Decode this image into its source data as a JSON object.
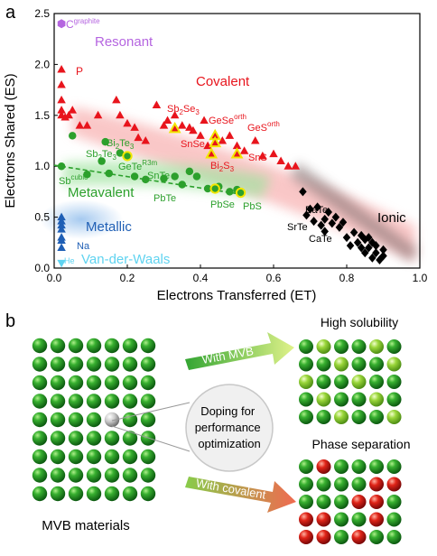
{
  "panel_a": {
    "panel_label": "a",
    "xlabel": "Electrons Transferred (ET)",
    "ylabel": "Electrons Shared (ES)",
    "xticks": [
      "0.0",
      "0.2",
      "0.4",
      "0.6",
      "0.8",
      "1.0"
    ],
    "yticks": [
      "0.0",
      "0.5",
      "1.0",
      "1.5",
      "2.0",
      "2.5"
    ],
    "regions": {
      "resonant": "Resonant",
      "covalent": "Covalent",
      "metavalent": "Metavalent",
      "metallic": "Metallic",
      "ionic": "Ionic",
      "vdw": "Van-der-Waals"
    },
    "point_labels": {
      "c": "C",
      "c_sup": "graphite",
      "p": "P",
      "sb2se3_a": "Sb",
      "sb2se3_b": "2",
      "sb2se3_c": "Se",
      "sb2se3_d": "3",
      "gese_a": "GeSe",
      "gese_b": "orth",
      "ges_a": "GeS",
      "ges_b": "orth",
      "snse": "SnSe",
      "bi2s3_a": "Bi",
      "bi2s3_b": "2",
      "bi2s3_c": "S",
      "bi2s3_d": "3",
      "sns": "SnS",
      "bi2te3_a": "Bi",
      "bi2te3_b": "2",
      "bi2te3_c": "Te",
      "bi2te3_d": "3",
      "sb2te3_a": "Sb",
      "sb2te3_b": "2",
      "sb2te3_c": "Te",
      "sb2te3_d": "3",
      "gete_a": "GeTe",
      "gete_b": "R3m",
      "snte": "SnTe",
      "sb_a": "Sb",
      "sb_b": "cubic",
      "pbte": "PbTe",
      "pbse": "PbSe",
      "pbs": "PbS",
      "bate": "BaTe",
      "srte": "SrTe",
      "cate": "CaTe",
      "na": "Na",
      "he": "He"
    },
    "colors": {
      "covalent": "#e8141c",
      "metavalent": "#2ca02c",
      "ionic": "#000000",
      "metallic": "#1f5fb5",
      "resonant": "#b565e0",
      "vdw": "#5fd3f0",
      "highlight": "#f2e600"
    },
    "chart_data": {
      "type": "scatter",
      "xlim": [
        0.0,
        1.0
      ],
      "ylim": [
        0.0,
        2.5
      ],
      "series": [
        {
          "name": "Covalent",
          "marker": "triangle-up",
          "color": "#e8141c",
          "points": [
            [
              0.02,
              1.95
            ],
            [
              0.02,
              1.8
            ],
            [
              0.02,
              1.65
            ],
            [
              0.02,
              1.55
            ],
            [
              0.02,
              1.5
            ],
            [
              0.03,
              1.48
            ],
            [
              0.04,
              1.5
            ],
            [
              0.05,
              1.55
            ],
            [
              0.07,
              1.4
            ],
            [
              0.09,
              1.4
            ],
            [
              0.12,
              1.5
            ],
            [
              0.17,
              1.65
            ],
            [
              0.18,
              1.5
            ],
            [
              0.2,
              1.42
            ],
            [
              0.22,
              1.38
            ],
            [
              0.23,
              1.28
            ],
            [
              0.25,
              1.25
            ],
            [
              0.28,
              1.6
            ],
            [
              0.3,
              1.4
            ],
            [
              0.31,
              1.45
            ],
            [
              0.33,
              1.5
            ],
            [
              0.35,
              1.4
            ],
            [
              0.37,
              1.38
            ],
            [
              0.38,
              1.35
            ],
            [
              0.4,
              1.3
            ],
            [
              0.41,
              1.45
            ],
            [
              0.42,
              1.2
            ],
            [
              0.46,
              1.25
            ],
            [
              0.48,
              1.3
            ],
            [
              0.5,
              1.2
            ],
            [
              0.52,
              1.15
            ],
            [
              0.55,
              1.25
            ],
            [
              0.57,
              1.1
            ],
            [
              0.6,
              1.12
            ],
            [
              0.62,
              1.05
            ],
            [
              0.64,
              1.0
            ],
            [
              0.66,
              1.0
            ]
          ],
          "highlighted": [
            [
              0.33,
              1.37
            ],
            [
              0.44,
              1.3
            ],
            [
              0.44,
              1.23
            ],
            [
              0.43,
              1.12
            ],
            [
              0.5,
              1.12
            ]
          ]
        },
        {
          "name": "Metavalent",
          "marker": "circle",
          "color": "#2ca02c",
          "points": [
            [
              0.02,
              1.0
            ],
            [
              0.05,
              1.3
            ],
            [
              0.09,
              0.92
            ],
            [
              0.13,
              1.05
            ],
            [
              0.14,
              1.24
            ],
            [
              0.15,
              0.93
            ],
            [
              0.18,
              1.13
            ],
            [
              0.22,
              0.9
            ],
            [
              0.25,
              0.87
            ],
            [
              0.3,
              0.88
            ],
            [
              0.33,
              0.9
            ],
            [
              0.35,
              0.82
            ],
            [
              0.37,
              0.95
            ],
            [
              0.39,
              0.9
            ],
            [
              0.42,
              0.78
            ],
            [
              0.45,
              0.8
            ],
            [
              0.48,
              0.75
            ],
            [
              0.5,
              0.77
            ]
          ],
          "highlighted": [
            [
              0.2,
              1.1
            ],
            [
              0.44,
              0.78
            ],
            [
              0.51,
              0.74
            ]
          ]
        },
        {
          "name": "Ionic",
          "marker": "diamond",
          "color": "#000000",
          "points": [
            [
              0.68,
              0.75
            ],
            [
              0.69,
              0.52
            ],
            [
              0.7,
              0.58
            ],
            [
              0.71,
              0.46
            ],
            [
              0.72,
              0.6
            ],
            [
              0.73,
              0.42
            ],
            [
              0.74,
              0.48
            ],
            [
              0.74,
              0.36
            ],
            [
              0.75,
              0.55
            ],
            [
              0.76,
              0.44
            ],
            [
              0.77,
              0.5
            ],
            [
              0.78,
              0.4
            ],
            [
              0.79,
              0.45
            ],
            [
              0.8,
              0.3
            ],
            [
              0.81,
              0.22
            ],
            [
              0.82,
              0.35
            ],
            [
              0.83,
              0.25
            ],
            [
              0.84,
              0.2
            ],
            [
              0.84,
              0.32
            ],
            [
              0.85,
              0.15
            ],
            [
              0.85,
              0.28
            ],
            [
              0.86,
              0.2
            ],
            [
              0.87,
              0.1
            ],
            [
              0.87,
              0.25
            ],
            [
              0.88,
              0.15
            ],
            [
              0.88,
              0.22
            ],
            [
              0.89,
              0.08
            ],
            [
              0.9,
              0.12
            ],
            [
              0.9,
              0.18
            ],
            [
              0.86,
              0.3
            ]
          ]
        },
        {
          "name": "Metallic",
          "marker": "triangle-up",
          "color": "#1f5fb5",
          "points": [
            [
              0.02,
              0.5
            ],
            [
              0.02,
              0.46
            ],
            [
              0.02,
              0.42
            ],
            [
              0.02,
              0.38
            ],
            [
              0.02,
              0.3
            ],
            [
              0.02,
              0.27
            ],
            [
              0.02,
              0.2
            ]
          ]
        },
        {
          "name": "Resonant",
          "marker": "hexagon",
          "color": "#b565e0",
          "points": [
            [
              0.02,
              2.4
            ]
          ]
        },
        {
          "name": "Van-der-Waals",
          "marker": "triangle-down",
          "color": "#5fd3f0",
          "points": [
            [
              0.02,
              0.05
            ]
          ]
        }
      ],
      "metavalent_trend": [
        [
          0.0,
          1.01
        ],
        [
          0.52,
          0.72
        ]
      ]
    }
  },
  "panel_b": {
    "panel_label": "b",
    "materials_label": "MVB materials",
    "doping_label": [
      "Doping for",
      "performance",
      "optimization"
    ],
    "arrow_top": "With MVB",
    "arrow_bottom": "With covalent",
    "result_top": "High solubility",
    "result_bottom": "Phase separation"
  }
}
